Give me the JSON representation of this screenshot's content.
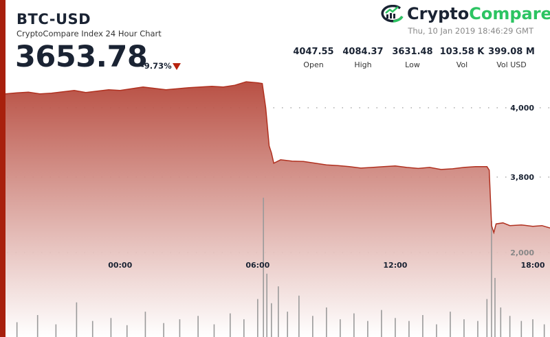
{
  "header": {
    "symbol": "BTC-USD",
    "subtitle": "CryptoCompare Index 24 Hour Chart",
    "price": "3653.78",
    "change": "-9.73%",
    "direction_icon": "down-triangle-icon"
  },
  "brand": {
    "name_part1": "Crypto",
    "name_part2": "Compare",
    "timestamp": "Thu, 10 Jan 2019 18:46:29 GMT"
  },
  "stats": [
    {
      "value": "4047.55",
      "label": "Open"
    },
    {
      "value": "4084.37",
      "label": "High"
    },
    {
      "value": "3631.48",
      "label": "Low"
    },
    {
      "value": "103.58 K",
      "label": "Vol"
    },
    {
      "value": "399.08 M",
      "label": "Vol USD"
    }
  ],
  "colors": {
    "accent": "#a8200d",
    "line": "#b0301f",
    "brand_green": "#2cc462",
    "down": "#b8230e"
  },
  "chart_data": {
    "type": "area",
    "title": "BTC-USD",
    "xlabel": "",
    "ylabel": "",
    "x_unit": "hours from 00:00",
    "xlim": [
      -5,
      18.75
    ],
    "ylim": [
      3600,
      4100
    ],
    "y_ticks": [
      {
        "value": 4000,
        "label": "4,000"
      },
      {
        "value": 3800,
        "label": "3,800"
      }
    ],
    "volume_ticks": [
      {
        "value": 2000,
        "label": "2,000"
      }
    ],
    "volume_lim": [
      0,
      8000
    ],
    "x_ticks": [
      {
        "value": 0,
        "label": "00:00"
      },
      {
        "value": 6,
        "label": "06:00"
      },
      {
        "value": 12,
        "label": "12:00"
      },
      {
        "value": 18,
        "label": "18:00"
      }
    ],
    "grid": true,
    "price": [
      [
        -5,
        4040
      ],
      [
        -4.5,
        4043
      ],
      [
        -4,
        4045
      ],
      [
        -3.5,
        4040
      ],
      [
        -3,
        4042
      ],
      [
        -2.5,
        4046
      ],
      [
        -2,
        4050
      ],
      [
        -1.5,
        4044
      ],
      [
        -1,
        4048
      ],
      [
        -0.5,
        4052
      ],
      [
        0,
        4050
      ],
      [
        0.5,
        4055
      ],
      [
        1,
        4060
      ],
      [
        1.5,
        4056
      ],
      [
        2,
        4052
      ],
      [
        2.5,
        4055
      ],
      [
        3,
        4058
      ],
      [
        3.5,
        4060
      ],
      [
        4,
        4062
      ],
      [
        4.5,
        4060
      ],
      [
        5,
        4065
      ],
      [
        5.5,
        4075
      ],
      [
        6,
        4072
      ],
      [
        6.2,
        4070
      ],
      [
        6.35,
        4000
      ],
      [
        6.5,
        3890
      ],
      [
        6.6,
        3870
      ],
      [
        6.7,
        3840
      ],
      [
        7,
        3850
      ],
      [
        7.5,
        3846
      ],
      [
        8,
        3845
      ],
      [
        8.5,
        3840
      ],
      [
        9,
        3835
      ],
      [
        9.5,
        3833
      ],
      [
        10,
        3830
      ],
      [
        10.5,
        3826
      ],
      [
        11,
        3828
      ],
      [
        11.5,
        3830
      ],
      [
        12,
        3832
      ],
      [
        12.5,
        3828
      ],
      [
        13,
        3825
      ],
      [
        13.5,
        3828
      ],
      [
        14,
        3822
      ],
      [
        14.5,
        3824
      ],
      [
        15,
        3828
      ],
      [
        15.5,
        3830
      ],
      [
        16,
        3830
      ],
      [
        16.1,
        3820
      ],
      [
        16.2,
        3660
      ],
      [
        16.3,
        3640
      ],
      [
        16.4,
        3665
      ],
      [
        16.7,
        3668
      ],
      [
        17,
        3660
      ],
      [
        17.5,
        3662
      ],
      [
        18,
        3658
      ],
      [
        18.4,
        3660
      ],
      [
        18.75,
        3653
      ]
    ],
    "volume": [
      [
        -4.5,
        350
      ],
      [
        -3.6,
        520
      ],
      [
        -2.8,
        300
      ],
      [
        -1.9,
        820
      ],
      [
        -1.2,
        380
      ],
      [
        -0.4,
        450
      ],
      [
        0.3,
        280
      ],
      [
        1.1,
        600
      ],
      [
        1.9,
        330
      ],
      [
        2.6,
        420
      ],
      [
        3.4,
        500
      ],
      [
        4.1,
        300
      ],
      [
        4.8,
        560
      ],
      [
        5.4,
        420
      ],
      [
        6.0,
        900
      ],
      [
        6.25,
        3300
      ],
      [
        6.4,
        1500
      ],
      [
        6.6,
        800
      ],
      [
        6.9,
        1200
      ],
      [
        7.3,
        600
      ],
      [
        7.8,
        980
      ],
      [
        8.4,
        500
      ],
      [
        9.0,
        700
      ],
      [
        9.6,
        420
      ],
      [
        10.2,
        560
      ],
      [
        10.8,
        380
      ],
      [
        11.4,
        640
      ],
      [
        12.0,
        450
      ],
      [
        12.6,
        380
      ],
      [
        13.2,
        520
      ],
      [
        13.8,
        300
      ],
      [
        14.4,
        600
      ],
      [
        15.0,
        420
      ],
      [
        15.6,
        380
      ],
      [
        16.0,
        900
      ],
      [
        16.2,
        2750
      ],
      [
        16.35,
        1400
      ],
      [
        16.6,
        700
      ],
      [
        17.0,
        500
      ],
      [
        17.5,
        380
      ],
      [
        18.0,
        420
      ],
      [
        18.5,
        300
      ]
    ]
  }
}
